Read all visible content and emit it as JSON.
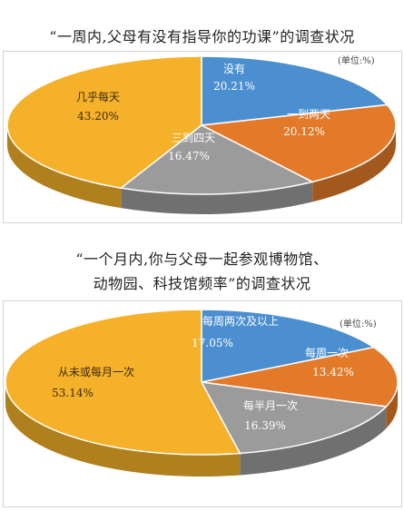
{
  "chart_data": [
    {
      "type": "pie",
      "title": "“一周内,父母有没有指导你的功课”的调查状况",
      "unit": "(单位:%)",
      "slices": [
        {
          "label": "没有",
          "value": 20.21,
          "value_text": "20.21%",
          "color": "#4b8fd0"
        },
        {
          "label": "一到两天",
          "value": 20.12,
          "value_text": "20.12%",
          "color": "#e27a2a"
        },
        {
          "label": "三到四天",
          "value": 16.47,
          "value_text": "16.47%",
          "color": "#9b9b9b"
        },
        {
          "label": "几乎每天",
          "value": 43.2,
          "value_text": "43.20%",
          "color": "#f5b12a"
        }
      ]
    },
    {
      "type": "pie",
      "title_lines": [
        "“一个月内,你与父母一起参观博物馆、",
        "动物园、科技馆频率”的调查状况"
      ],
      "unit": "(单位:%)",
      "slices": [
        {
          "label": "每周两次及以上",
          "value": 17.05,
          "value_text": "17.05%",
          "color": "#4b8fd0"
        },
        {
          "label": "每周一次",
          "value": 13.42,
          "value_text": "13.42%",
          "color": "#e27a2a"
        },
        {
          "label": "每半月一次",
          "value": 16.39,
          "value_text": "16.39%",
          "color": "#9b9b9b"
        },
        {
          "label": "从未或每月一次",
          "value": 53.14,
          "value_text": "53.14%",
          "color": "#f5b12a"
        }
      ]
    }
  ]
}
